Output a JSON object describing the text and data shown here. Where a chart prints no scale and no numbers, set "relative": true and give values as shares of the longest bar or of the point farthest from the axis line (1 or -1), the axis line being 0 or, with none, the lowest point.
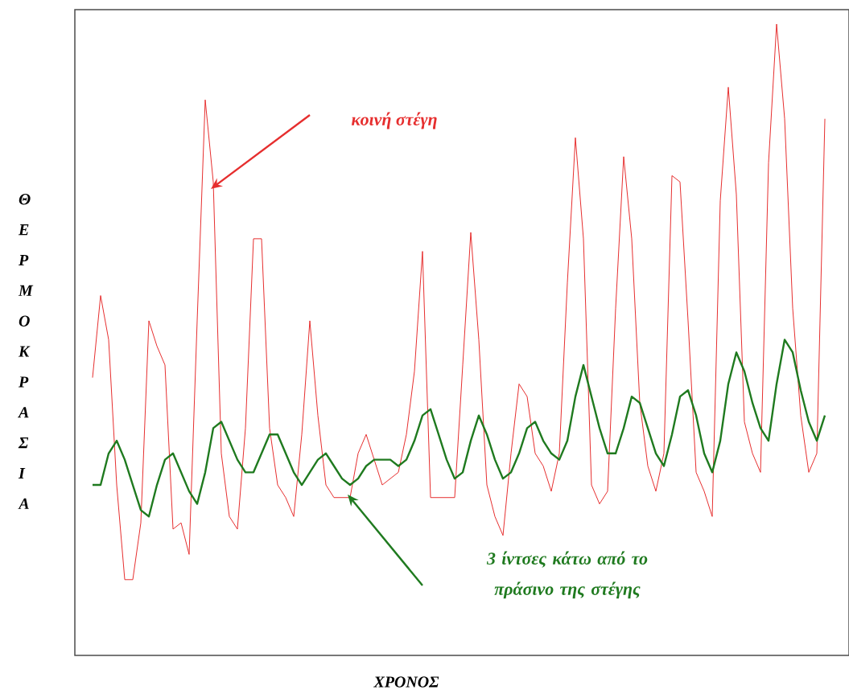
{
  "chart_data": {
    "type": "line",
    "relative": true,
    "tick_labels": false,
    "xlabel": "ΧΡΟΝΟΣ",
    "ylabel": "ΘΕΡΜΟΚΡΑΣΙΑ",
    "categories": [
      null,
      null,
      null,
      null,
      null,
      null,
      null,
      null,
      null,
      null,
      null,
      null,
      null,
      null,
      null,
      null,
      null,
      null,
      null,
      null,
      null,
      null,
      null,
      null,
      null,
      null,
      null,
      null,
      null,
      null,
      null,
      null,
      null,
      null,
      null,
      null,
      null,
      null,
      null,
      null,
      null,
      null,
      null,
      null,
      null,
      null,
      null,
      null,
      null,
      null,
      null,
      null,
      null,
      null,
      null,
      null,
      null,
      null,
      null,
      null,
      null,
      null,
      null,
      null,
      null,
      null,
      null,
      null,
      null,
      null,
      null,
      null,
      null,
      null,
      null,
      null,
      null,
      null,
      null,
      null,
      null,
      null,
      null,
      null,
      null,
      null,
      null,
      null,
      null,
      null,
      null,
      null
    ],
    "series": [
      {
        "color": "#e62e2e",
        "values": [
          0.44,
          0.57,
          0.5,
          0.27,
          0.12,
          0.12,
          0.21,
          0.53,
          0.49,
          0.46,
          0.2,
          0.21,
          0.16,
          0.53,
          0.88,
          0.75,
          0.32,
          0.22,
          0.2,
          0.36,
          0.66,
          0.66,
          0.36,
          0.27,
          0.25,
          0.22,
          0.35,
          0.53,
          0.38,
          0.27,
          0.25,
          0.25,
          0.25,
          0.32,
          0.35,
          0.31,
          0.27,
          0.28,
          0.29,
          0.35,
          0.45,
          0.64,
          0.25,
          0.25,
          0.25,
          0.25,
          0.46,
          0.67,
          0.5,
          0.27,
          0.22,
          0.19,
          0.32,
          0.43,
          0.41,
          0.32,
          0.3,
          0.26,
          0.32,
          0.59,
          0.82,
          0.66,
          0.27,
          0.24,
          0.26,
          0.55,
          0.79,
          0.66,
          0.4,
          0.3,
          0.26,
          0.32,
          0.76,
          0.75,
          0.53,
          0.29,
          0.26,
          0.22,
          0.72,
          0.9,
          0.73,
          0.37,
          0.32,
          0.29,
          0.78,
          1.0,
          0.85,
          0.55,
          0.38,
          0.29,
          0.32,
          0.85
        ]
      },
      {
        "color": "#1f7a1f",
        "values": [
          0.27,
          0.27,
          0.32,
          0.34,
          0.31,
          0.27,
          0.23,
          0.22,
          0.27,
          0.31,
          0.32,
          0.29,
          0.26,
          0.24,
          0.29,
          0.36,
          0.37,
          0.34,
          0.31,
          0.29,
          0.29,
          0.32,
          0.35,
          0.35,
          0.32,
          0.29,
          0.27,
          0.29,
          0.31,
          0.32,
          0.3,
          0.28,
          0.27,
          0.28,
          0.3,
          0.31,
          0.31,
          0.31,
          0.3,
          0.31,
          0.34,
          0.38,
          0.39,
          0.35,
          0.31,
          0.28,
          0.29,
          0.34,
          0.38,
          0.35,
          0.31,
          0.28,
          0.29,
          0.32,
          0.36,
          0.37,
          0.34,
          0.32,
          0.31,
          0.34,
          0.41,
          0.46,
          0.41,
          0.36,
          0.32,
          0.32,
          0.36,
          0.41,
          0.4,
          0.36,
          0.32,
          0.3,
          0.35,
          0.41,
          0.42,
          0.38,
          0.32,
          0.29,
          0.34,
          0.43,
          0.48,
          0.45,
          0.4,
          0.36,
          0.34,
          0.43,
          0.5,
          0.48,
          0.42,
          0.37,
          0.34,
          0.38
        ]
      }
    ],
    "annotations": [
      "κοινή στέγη",
      "3 ίντσες κάτω από το πράσινο της στέγης"
    ]
  }
}
